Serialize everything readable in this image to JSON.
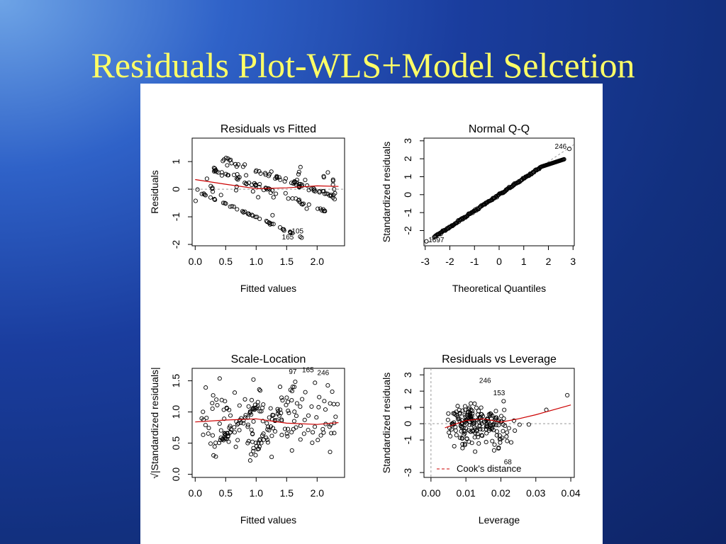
{
  "slide": {
    "title": "Residuals Plot-WLS+Model Selcetion"
  },
  "chart_data": [
    {
      "type": "scatter",
      "title": "Residuals vs Fitted",
      "xlabel": "Fitted values",
      "ylabel": "Residuals",
      "xlim": [
        -0.05,
        2.45
      ],
      "ylim": [
        -2.05,
        1.85
      ],
      "xticks": [
        "0.0",
        "0.5",
        "1.0",
        "1.5",
        "2.0"
      ],
      "yticks": [
        "-2",
        "-1",
        "0",
        "1"
      ],
      "reference_line": 0,
      "smooth": [
        [
          0.0,
          0.35
        ],
        [
          0.5,
          0.18
        ],
        [
          1.0,
          0.02
        ],
        [
          1.5,
          0.05
        ],
        [
          2.0,
          0.12
        ],
        [
          2.35,
          0.1
        ]
      ],
      "annotations": [
        {
          "text": "165",
          "x": 1.52,
          "y": -1.82
        },
        {
          "text": "105",
          "x": 1.68,
          "y": -1.6
        }
      ]
    },
    {
      "type": "scatter",
      "title": "Normal Q-Q",
      "xlabel": "Theoretical Quantiles",
      "ylabel": "Standardized residuals",
      "xlim": [
        -3.05,
        3.05
      ],
      "ylim": [
        -2.85,
        3.15
      ],
      "xticks": [
        "-3",
        "-2",
        "-1",
        "0",
        "1",
        "2",
        "3"
      ],
      "yticks": [
        "-2",
        "-1",
        "0",
        "1",
        "2",
        "3"
      ],
      "annotations": [
        {
          "text": "246",
          "x": 2.5,
          "y": 2.55
        },
        {
          "text": "1697",
          "x": -2.55,
          "y": -2.65
        }
      ]
    },
    {
      "type": "scatter",
      "title": "Scale-Location",
      "xlabel": "Fitted values",
      "ylabel": "√|Standardized residuals|",
      "xlim": [
        -0.05,
        2.45
      ],
      "ylim": [
        -0.05,
        1.7
      ],
      "xticks": [
        "0.0",
        "0.5",
        "1.0",
        "1.5",
        "2.0"
      ],
      "yticks": [
        "0.0",
        "0.5",
        "1.0",
        "1.5"
      ],
      "smooth": [
        [
          0.0,
          0.84
        ],
        [
          0.5,
          0.87
        ],
        [
          1.0,
          0.89
        ],
        [
          1.5,
          0.82
        ],
        [
          2.0,
          0.8
        ],
        [
          2.35,
          0.83
        ]
      ],
      "annotations": [
        {
          "text": "97",
          "x": 1.6,
          "y": 1.61
        },
        {
          "text": "165",
          "x": 1.85,
          "y": 1.64
        },
        {
          "text": "246",
          "x": 2.1,
          "y": 1.59
        }
      ]
    },
    {
      "type": "scatter",
      "title": "Residuals vs Leverage",
      "xlabel": "Leverage",
      "ylabel": "Standardized residuals",
      "xlim": [
        -0.002,
        0.041
      ],
      "ylim": [
        -3.3,
        3.4
      ],
      "xticks": [
        "0.00",
        "0.01",
        "0.02",
        "0.03",
        "0.04"
      ],
      "yticks": [
        "-3",
        "-1",
        "0",
        "1",
        "2",
        "3"
      ],
      "reference_line": 0,
      "smooth": [
        [
          0.004,
          -0.25
        ],
        [
          0.01,
          0.2
        ],
        [
          0.015,
          0.3
        ],
        [
          0.02,
          0.1
        ],
        [
          0.025,
          0.3
        ],
        [
          0.03,
          0.55
        ],
        [
          0.04,
          1.15
        ]
      ],
      "legend": "Cook's distance",
      "annotations": [
        {
          "text": "246",
          "x": 0.0155,
          "y": 2.5
        },
        {
          "text": "153",
          "x": 0.0195,
          "y": 1.75
        },
        {
          "text": "68",
          "x": 0.022,
          "y": -2.5
        }
      ]
    }
  ]
}
